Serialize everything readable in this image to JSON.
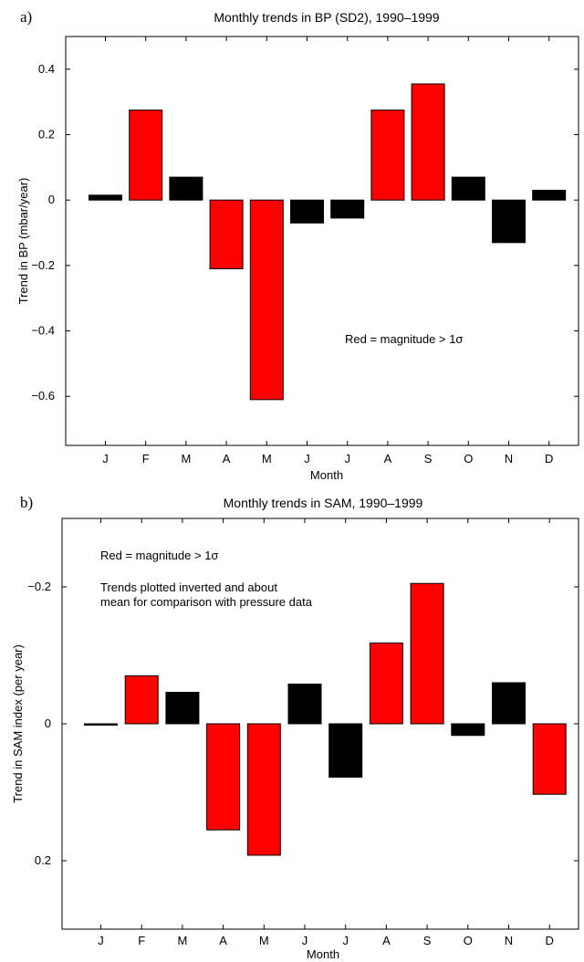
{
  "chart_data": [
    {
      "type": "bar",
      "panel_label": "a)",
      "title": "Monthly trends in BP (SD2), 1990–1999",
      "xlabel": "Month",
      "ylabel": "Trend in BP (mbar/year)",
      "categories": [
        "J",
        "F",
        "M",
        "A",
        "M",
        "J",
        "J",
        "A",
        "S",
        "O",
        "N",
        "D"
      ],
      "values": [
        0.015,
        0.275,
        0.07,
        -0.21,
        -0.61,
        -0.07,
        -0.055,
        0.275,
        0.355,
        0.07,
        -0.13,
        0.03
      ],
      "significant": [
        false,
        true,
        false,
        true,
        true,
        false,
        false,
        true,
        true,
        false,
        false,
        false
      ],
      "ylim": [
        -0.75,
        0.5
      ],
      "yticks": [
        0.4,
        0.2,
        0,
        -0.2,
        -0.4,
        -0.6
      ],
      "ytick_labels": [
        "0.4",
        "0.2",
        "0",
        "−0.2",
        "−0.4",
        "−0.6"
      ],
      "y_inverted": false,
      "annotation_lines": [
        "Red = magnitude > 1σ"
      ],
      "colors": {
        "significant": "#ff0000",
        "other": "#000000"
      }
    },
    {
      "type": "bar",
      "panel_label": "b)",
      "title": "Monthly trends in SAM, 1990–1999",
      "xlabel": "Month",
      "ylabel": "Trend in SAM index (per year)",
      "categories": [
        "J",
        "F",
        "M",
        "A",
        "M",
        "J",
        "J",
        "A",
        "S",
        "O",
        "N",
        "D"
      ],
      "values": [
        0.002,
        -0.07,
        -0.046,
        0.155,
        0.192,
        -0.058,
        0.078,
        -0.118,
        -0.205,
        0.017,
        -0.06,
        0.103
      ],
      "significant": [
        false,
        true,
        false,
        true,
        true,
        false,
        false,
        true,
        true,
        false,
        false,
        true
      ],
      "ylim": [
        -0.3,
        0.3
      ],
      "yticks": [
        -0.2,
        0,
        0.2
      ],
      "ytick_labels": [
        "−0.2",
        "0",
        "0.2"
      ],
      "y_inverted": true,
      "annotation_lines": [
        "Red = magnitude > 1σ",
        "Trends plotted inverted and about",
        "mean for comparison with pressure data"
      ],
      "colors": {
        "significant": "#ff0000",
        "other": "#000000"
      }
    }
  ]
}
